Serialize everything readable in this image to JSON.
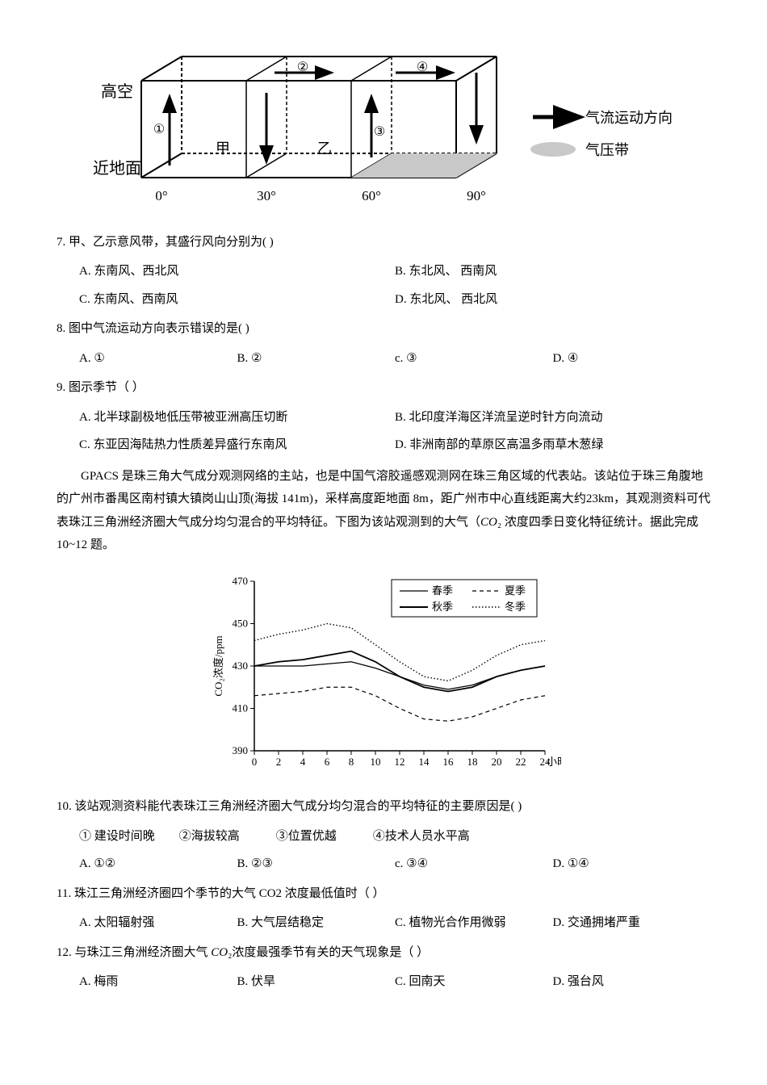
{
  "fig1": {
    "labels": {
      "top_sky": "高空",
      "ground": "近地面",
      "jia": "甲",
      "yi": "乙",
      "legend_arrow": "气流运动方向",
      "legend_band": "气压带"
    },
    "longitudes": [
      "0°",
      "30°",
      "60°",
      "90°"
    ],
    "circled": [
      "①",
      "②",
      "③",
      "④"
    ],
    "box_stroke": "#000000",
    "fill_band": "#c8c8c8",
    "arrow_color": "#000000"
  },
  "q7": {
    "stem": "7. 甲、乙示意风带，其盛行风向分别为( )",
    "A": "A. 东南风、西北风",
    "B": "B. 东北风、 西南风",
    "C": "C. 东南风、西南风",
    "D": "D. 东北风、 西北风"
  },
  "q8": {
    "stem": "8. 图中气流运动方向表示错误的是( )",
    "A": "A. ①",
    "B": "B. ②",
    "C": "c. ③",
    "D": "D. ④"
  },
  "q9": {
    "stem": "9. 图示季节（ ）",
    "A": "A. 北半球副极地低压带被亚洲高压切断",
    "B": "B. 北印度洋海区洋流呈逆时针方向流动",
    "C": "C. 东亚因海陆热力性质差异盛行东南风",
    "D": "D. 非洲南部的草原区高温多雨草木葱绿"
  },
  "passage1_a": "GPACS 是珠三角大气成分观测网络的主站，也是中国气溶胶遥感观测网在珠三角区域的代表站。该站位于珠三角腹地的广州市番禺区南村镇大镇岗山山顶(海拔 141m)，采样高度距地面 8m，距广州市中心直线距离大约23km，其观测资料可代表珠江三角洲经济圈大气成分均匀混合的平均特征。下图为该站观测到的大气（",
  "passage1_b": "₂ 浓度四季日变化特征统计。据此完成 10~12 题。",
  "passage_co2": "CO",
  "chart": {
    "y_label": "CO₂浓度/ppm",
    "y_ticks": [
      390,
      410,
      430,
      450,
      470
    ],
    "x_ticks": [
      0,
      2,
      4,
      6,
      8,
      10,
      12,
      14,
      16,
      18,
      20,
      22,
      24
    ],
    "x_unit": "小时",
    "legend": {
      "spring": "春季",
      "summer": "夏季",
      "autumn": "秋季",
      "winter": "冬季"
    },
    "colors": {
      "axis": "#000000",
      "line": "#000000",
      "legend_box": "#000000"
    },
    "series": {
      "winter": [
        [
          0,
          442
        ],
        [
          2,
          445
        ],
        [
          4,
          447
        ],
        [
          6,
          450
        ],
        [
          8,
          448
        ],
        [
          10,
          440
        ],
        [
          12,
          432
        ],
        [
          14,
          425
        ],
        [
          16,
          423
        ],
        [
          18,
          428
        ],
        [
          20,
          435
        ],
        [
          22,
          440
        ],
        [
          24,
          442
        ]
      ],
      "autumn": [
        [
          0,
          430
        ],
        [
          2,
          432
        ],
        [
          4,
          433
        ],
        [
          6,
          435
        ],
        [
          8,
          437
        ],
        [
          10,
          432
        ],
        [
          12,
          425
        ],
        [
          14,
          420
        ],
        [
          16,
          418
        ],
        [
          18,
          420
        ],
        [
          20,
          425
        ],
        [
          22,
          428
        ],
        [
          24,
          430
        ]
      ],
      "spring": [
        [
          0,
          430
        ],
        [
          2,
          430
        ],
        [
          4,
          430
        ],
        [
          6,
          431
        ],
        [
          8,
          432
        ],
        [
          10,
          429
        ],
        [
          12,
          425
        ],
        [
          14,
          421
        ],
        [
          16,
          419
        ],
        [
          18,
          421
        ],
        [
          20,
          425
        ],
        [
          22,
          428
        ],
        [
          24,
          430
        ]
      ],
      "summer": [
        [
          0,
          416
        ],
        [
          2,
          417
        ],
        [
          4,
          418
        ],
        [
          6,
          420
        ],
        [
          8,
          420
        ],
        [
          10,
          416
        ],
        [
          12,
          410
        ],
        [
          14,
          405
        ],
        [
          16,
          404
        ],
        [
          18,
          406
        ],
        [
          20,
          410
        ],
        [
          22,
          414
        ],
        [
          24,
          416
        ]
      ]
    }
  },
  "q10": {
    "stem": "10. 该站观测资料能代表珠江三角洲经济圈大气成分均匀混合的平均特征的主要原因是( )",
    "conds": "① 建设时间晚　　②海拔较高　　　③位置优越　　　④技术人员水平高",
    "A": "A. ①②",
    "B": "B. ②③",
    "C": "c. ③④",
    "D": "D. ①④"
  },
  "q11": {
    "stem": "11. 珠江三角洲经济圈四个季节的大气 CO2 浓度最低值时（ ）",
    "A": "A. 太阳辐射强",
    "B": "B. 大气层结稳定",
    "C": "C. 植物光合作用微弱",
    "D": "D. 交通拥堵严重"
  },
  "q12": {
    "stem_a": "12. 与珠江三角洲经济圈大气 ",
    "stem_b": "₂浓度最强季节有关的天气现象是（ ）",
    "co2": "CO",
    "A": "A. 梅雨",
    "B": "B. 伏旱",
    "C": "C. 回南天",
    "D": "D. 强台风"
  }
}
